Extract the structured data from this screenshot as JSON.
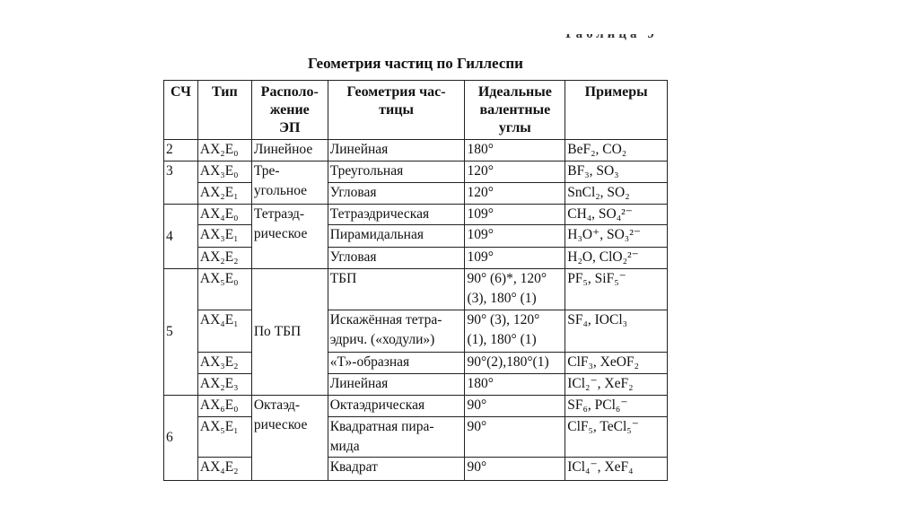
{
  "table_label": "Таблица 9",
  "title": "Геометрия частиц по Гиллеспи",
  "headers": [
    "СЧ",
    "Тип",
    "Располо-\nжение\nЭП",
    "Геометрия час-\nтицы",
    "Идеальные\nвалентные\nуглы",
    "Примеры"
  ],
  "rows": [
    {
      "sc": "2",
      "type": "AX₂E₀",
      "arrangement": "Линейное",
      "geometry": "Линейная",
      "angles": "180°",
      "examples": "BeF₂, CO₂"
    },
    {
      "sc": "3",
      "type": "AX₃E₀",
      "arrangement": "Тре-\nугольное",
      "geometry": "Треугольная",
      "angles": "120°",
      "examples": "BF₃, SO₃"
    },
    {
      "type": "AX₂E₁",
      "geometry": "Угловая",
      "angles": "120°",
      "examples": "SnCl₂, SO₂"
    },
    {
      "sc": "4",
      "type": "AX₄E₀",
      "arrangement": "Тетраэд-\nрическое",
      "geometry": "Тетраэдрическая",
      "angles": "109°",
      "examples": "CH₄, SO₄²⁻"
    },
    {
      "type": "AX₃E₁",
      "geometry": "Пирамидальная",
      "angles": "109°",
      "examples": "H₃O⁺, SO₃²⁻"
    },
    {
      "type": "AX₂E₂",
      "geometry": "Угловая",
      "angles": "109°",
      "examples": "H₂O, ClO₂²⁻"
    },
    {
      "sc": "5",
      "type": "AX₅E₀",
      "arrangement": "По ТБП",
      "geometry": "ТБП",
      "angles": "90° (6)*, 120°\n(3), 180° (1)",
      "examples": "PF₅, SiF₅⁻"
    },
    {
      "type": "AX₄E₁",
      "geometry": "Искажённая тетра-\nэдрич. («ходули»)",
      "angles": "90° (3), 120°\n(1), 180° (1)",
      "examples": "SF₄, IOCl₃"
    },
    {
      "type": "AX₃E₂",
      "geometry": "«Т»-образная",
      "angles": "90°(2),180°(1)",
      "examples": "ClF₃, XeOF₂"
    },
    {
      "type": "AX₂E₃",
      "geometry": "Линейная",
      "angles": "180°",
      "examples": "ICl₂⁻, XeF₂"
    },
    {
      "sc": "6",
      "type": "AX₆E₀",
      "arrangement": "Октаэд-\nрическое",
      "geometry": "Октаэдрическая",
      "angles": "90°",
      "examples": "SF₆, PCl₆⁻"
    },
    {
      "type": "AX₅E₁",
      "geometry": "Квадратная пира-\nмида",
      "angles": "90°",
      "examples": "ClF₅, TeCl₅⁻"
    },
    {
      "type": "AX₄E₂",
      "geometry": "Квадрат",
      "angles": "90°",
      "examples": "ICl₄⁻, XeF₄"
    }
  ]
}
